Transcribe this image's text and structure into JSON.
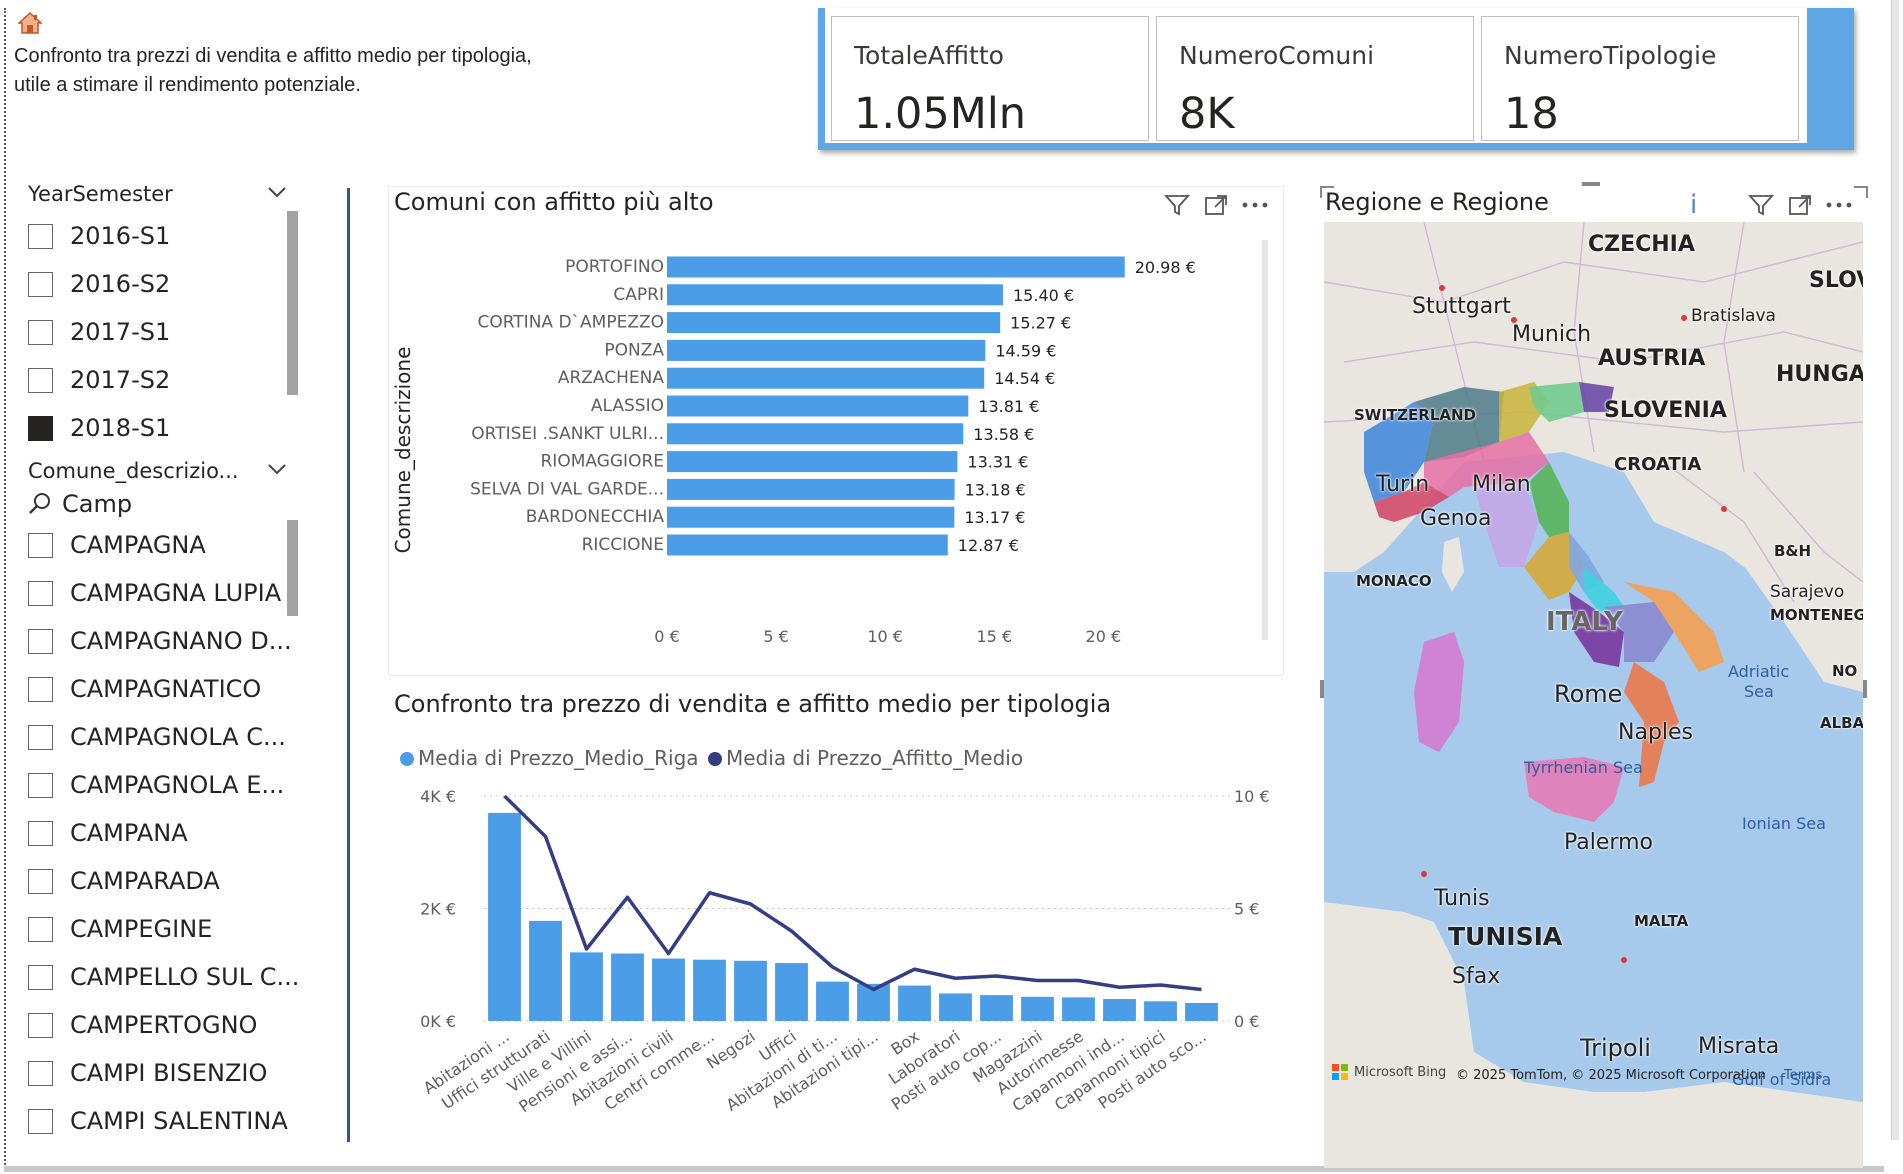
{
  "header": {
    "home_icon": "home-icon",
    "description_line1": "Confronto tra prezzi di vendita e affitto medio per tipologia,",
    "description_line2": "utile a stimare il rendimento potenziale."
  },
  "kpis": [
    {
      "label": "TotaleAffitto",
      "value": "1.05Mln"
    },
    {
      "label": "NumeroComuni",
      "value": "8K"
    },
    {
      "label": "NumeroTipologie",
      "value": "18"
    }
  ],
  "slicer_year": {
    "title": "YearSemester",
    "items": [
      {
        "label": "2016-S1",
        "checked": false
      },
      {
        "label": "2016-S2",
        "checked": false
      },
      {
        "label": "2017-S1",
        "checked": false
      },
      {
        "label": "2017-S2",
        "checked": false
      },
      {
        "label": "2018-S1",
        "checked": true
      }
    ]
  },
  "slicer_comune": {
    "title": "Comune_descrizio...",
    "search_value": "Camp",
    "items": [
      {
        "label": "CAMPAGNA"
      },
      {
        "label": "CAMPAGNA LUPIA"
      },
      {
        "label": "CAMPAGNANO D..."
      },
      {
        "label": "CAMPAGNATICO"
      },
      {
        "label": "CAMPAGNOLA C..."
      },
      {
        "label": "CAMPAGNOLA E..."
      },
      {
        "label": "CAMPANA"
      },
      {
        "label": "CAMPARADA"
      },
      {
        "label": "CAMPEGINE"
      },
      {
        "label": "CAMPELLO SUL C..."
      },
      {
        "label": "CAMPERTOGNO"
      },
      {
        "label": "CAMPI BISENZIO"
      },
      {
        "label": "CAMPI SALENTINA"
      }
    ]
  },
  "colors": {
    "bar_blue": "#4a9de6",
    "line_navy": "#353d84",
    "kpi_accent": "#5ea6e4",
    "divider": "#2b5797"
  },
  "chart_data": [
    {
      "type": "bar",
      "orientation": "horizontal",
      "title": "Comuni con affitto più alto",
      "ylabel": "Comune_descrizione",
      "categories": [
        "PORTOFINO",
        "CAPRI",
        "CORTINA D`AMPEZZO",
        "PONZA",
        "ARZACHENA",
        "ALASSIO",
        "ORTISEI .SANKT ULRI...",
        "RIOMAGGIORE",
        "SELVA DI VAL GARDE...",
        "BARDONECCHIA",
        "RICCIONE"
      ],
      "values": [
        20.98,
        15.4,
        15.27,
        14.59,
        14.54,
        13.81,
        13.58,
        13.31,
        13.18,
        13.17,
        12.87
      ],
      "value_labels": [
        "20.98 €",
        "15.40 €",
        "15.27 €",
        "14.59 €",
        "14.54 €",
        "13.81 €",
        "13.58 €",
        "13.31 €",
        "13.18 €",
        "13.17 €",
        "12.87 €"
      ],
      "xlim": [
        0,
        22
      ],
      "xticks": [
        0,
        5,
        10,
        15,
        20
      ],
      "xtick_labels": [
        "0 €",
        "5 €",
        "10 €",
        "15 €",
        "20 €"
      ]
    },
    {
      "type": "bar",
      "combo": "bar+line",
      "title": "Confronto tra prezzo di vendita e affitto medio per tipologia",
      "legend": [
        "Media di Prezzo_Medio_Riga",
        "Media di Prezzo_Affitto_Medio"
      ],
      "legend_position": "top-left",
      "categories": [
        "Abitazioni ...",
        "Uffici strutturati",
        "Ville e Villini",
        "Pensioni e assi...",
        "Abitazioni civili",
        "Centri comme...",
        "Negozi",
        "Uffici",
        "Abitazioni di ti...",
        "Abitazioni tipi...",
        "Box",
        "Laboratori",
        "Posti auto cop...",
        "Magazzini",
        "Autorimesse",
        "Capannoni ind...",
        "Capannoni tipici",
        "Posti auto sco..."
      ],
      "series": [
        {
          "name": "Media di Prezzo_Medio_Riga",
          "type": "bar",
          "axis": "left",
          "values": [
            3700,
            1780,
            1220,
            1200,
            1110,
            1090,
            1070,
            1030,
            700,
            660,
            630,
            490,
            460,
            430,
            420,
            390,
            350,
            320
          ]
        },
        {
          "name": "Media di Prezzo_Affitto_Medio",
          "type": "line",
          "axis": "right",
          "values": [
            10.0,
            8.2,
            3.2,
            5.5,
            3.0,
            5.7,
            5.2,
            4.0,
            2.4,
            1.4,
            2.3,
            1.9,
            2.0,
            1.8,
            1.8,
            1.5,
            1.6,
            1.4
          ]
        }
      ],
      "ylim_left": [
        0,
        4000
      ],
      "yticks_left": [
        "0K €",
        "2K €",
        "4K €"
      ],
      "ylim_right": [
        0,
        10
      ],
      "yticks_right": [
        "0 €",
        "5 €",
        "10 €"
      ]
    }
  ],
  "map": {
    "title": "Regione e Regione",
    "info_icon": "info-icon",
    "labels": {
      "czechia": "CZECHIA",
      "slov": "SLOV",
      "stuttgart": "Stuttgart",
      "bratislava": "Bratislava",
      "munich": "Munich",
      "austria": "AUSTRIA",
      "hunga": "HUNGA",
      "switzerland": "SWITZERLAND",
      "slovenia": "SLOVENIA",
      "turin": "Turin",
      "milan": "Milan",
      "croatia": "CROATIA",
      "genoa": "Genoa",
      "bh": "B&H",
      "monaco": "MONACO",
      "sarajevo": "Sarajevo",
      "montene": "MONTENEG",
      "italy": "ITALY",
      "adriatic": "Adriatic",
      "sea": "Sea",
      "no": "NO",
      "rome": "Rome",
      "alba": "ALBA",
      "naples": "Naples",
      "tyrrhenian": "Tyrrhenian Sea",
      "ionian": "Ionian Sea",
      "palermo": "Palermo",
      "tunis": "Tunis",
      "malta": "MALTA",
      "tunisia": "TUNISIA",
      "sfax": "Sfax",
      "tripoli": "Tripoli",
      "misrata": "Misrata",
      "sidra": "Gulf of Sidra"
    },
    "attribution_logo": "Microsoft Bing",
    "attribution": "© 2025 TomTom, © 2025 Microsoft Corporation",
    "terms": "Terms"
  }
}
